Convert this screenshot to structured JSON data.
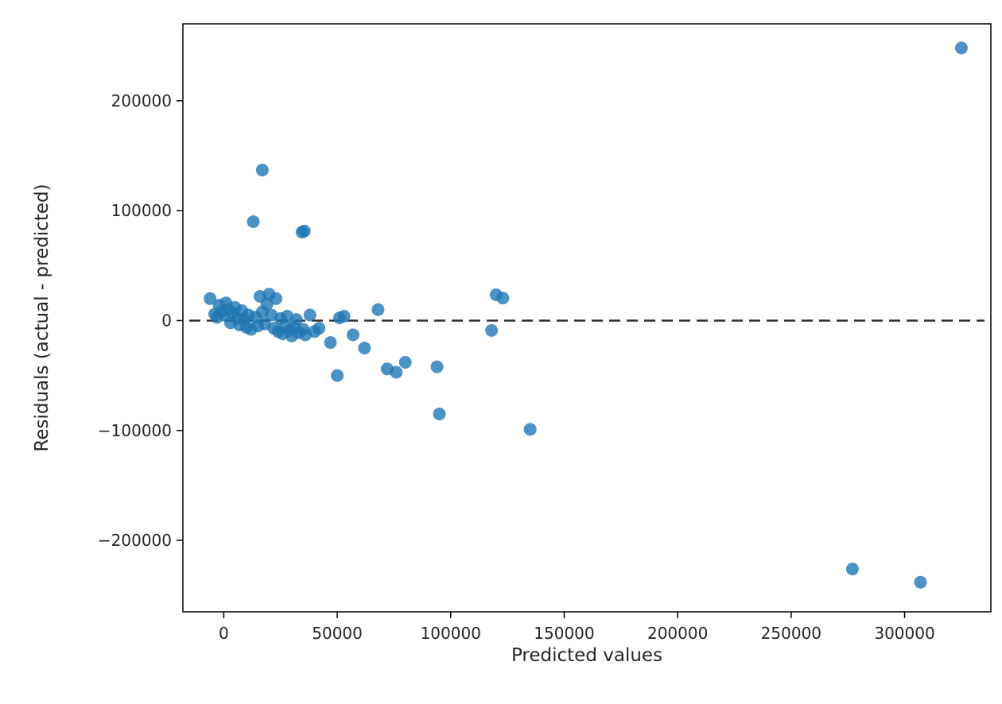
{
  "chart_data": {
    "type": "scatter",
    "title": "",
    "xlabel": "Predicted values",
    "ylabel": "Residuals (actual - predicted)",
    "xlim": [
      -18000,
      338000
    ],
    "ylim": [
      -265000,
      270000
    ],
    "x_ticks": [
      0,
      50000,
      100000,
      150000,
      200000,
      250000,
      300000
    ],
    "y_ticks": [
      -200000,
      -100000,
      0,
      100000,
      200000
    ],
    "grid": false,
    "legend_position": "none",
    "marker_color": "#1f77b4",
    "marker_opacity": 0.8,
    "marker_radius": 8,
    "zero_line": {
      "y": 0,
      "style": "dashed",
      "color": "#2b2b2b"
    },
    "points": [
      [
        325000,
        248000
      ],
      [
        307000,
        -238000
      ],
      [
        277000,
        -226000
      ],
      [
        17000,
        137000
      ],
      [
        13000,
        90000
      ],
      [
        34500,
        80500
      ],
      [
        35500,
        81500
      ],
      [
        120000,
        23500
      ],
      [
        123000,
        20500
      ],
      [
        118000,
        -9000
      ],
      [
        135000,
        -99000
      ],
      [
        95000,
        -85000
      ],
      [
        94000,
        -42000
      ],
      [
        80000,
        -38000
      ],
      [
        76000,
        -47000
      ],
      [
        72000,
        -44000
      ],
      [
        68000,
        10000
      ],
      [
        62000,
        -25000
      ],
      [
        57000,
        -13000
      ],
      [
        50000,
        -50000
      ],
      [
        51000,
        2500
      ],
      [
        53000,
        4000
      ],
      [
        47000,
        -20000
      ],
      [
        -6000,
        20000
      ],
      [
        -4000,
        6000
      ],
      [
        -3000,
        3000
      ],
      [
        -2000,
        14000
      ],
      [
        -1000,
        8000
      ],
      [
        0,
        5000
      ],
      [
        1000,
        16000
      ],
      [
        2000,
        10000
      ],
      [
        3000,
        -2000
      ],
      [
        4000,
        7000
      ],
      [
        5000,
        12000
      ],
      [
        6000,
        2000
      ],
      [
        7000,
        -4000
      ],
      [
        8000,
        9000
      ],
      [
        9000,
        1000
      ],
      [
        10000,
        -6000
      ],
      [
        11000,
        5000
      ],
      [
        12000,
        -8000
      ],
      [
        14000,
        3000
      ],
      [
        15000,
        -5000
      ],
      [
        16000,
        22000
      ],
      [
        17000,
        8000
      ],
      [
        18000,
        -3000
      ],
      [
        19000,
        15000
      ],
      [
        20000,
        24000
      ],
      [
        21000,
        5000
      ],
      [
        22000,
        -7000
      ],
      [
        23000,
        20000
      ],
      [
        24000,
        -10000
      ],
      [
        25000,
        2000
      ],
      [
        26000,
        -12000
      ],
      [
        27000,
        -5000
      ],
      [
        28000,
        4000
      ],
      [
        29000,
        -9000
      ],
      [
        30000,
        -14000
      ],
      [
        31000,
        -6000
      ],
      [
        32000,
        1000
      ],
      [
        33000,
        -11000
      ],
      [
        35000,
        -8000
      ],
      [
        36000,
        -13000
      ],
      [
        38000,
        5000
      ],
      [
        40000,
        -10000
      ],
      [
        42000,
        -7000
      ]
    ]
  }
}
